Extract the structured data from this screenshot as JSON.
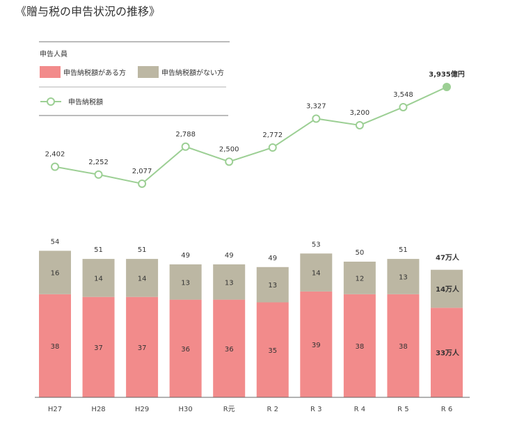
{
  "chart_data": {
    "type": "bar+line",
    "title": "《贈与税の申告状況の推移》",
    "legend": {
      "group_title": "申告人員",
      "bar_with_tax": "申告納税額がある方",
      "bar_without_tax": "申告納税額がない方",
      "line": "申告納税額"
    },
    "categories": [
      "H27",
      "H28",
      "H29",
      "H30",
      "R元",
      "R 2",
      "R 3",
      "R 4",
      "R 5",
      "R 6"
    ],
    "series": [
      {
        "name": "申告納税額がある方",
        "type": "stacked-bar",
        "unit": "万人",
        "values": [
          38,
          37,
          37,
          36,
          36,
          35,
          39,
          38,
          38,
          33
        ],
        "color": "#f28b8b"
      },
      {
        "name": "申告納税額がない方",
        "type": "stacked-bar",
        "unit": "万人",
        "values": [
          16,
          14,
          14,
          13,
          13,
          13,
          14,
          12,
          13,
          14
        ],
        "color": "#bcb7a3"
      },
      {
        "name": "申告納税額",
        "type": "line",
        "unit": "億円",
        "values": [
          2402,
          2252,
          2077,
          2788,
          2500,
          2772,
          3327,
          3200,
          3548,
          3935
        ],
        "color": "#9ccf94"
      }
    ],
    "totals": [
      54,
      51,
      51,
      49,
      49,
      49,
      53,
      50,
      51,
      47
    ],
    "bar_labels": {
      "with_tax": [
        "38",
        "37",
        "37",
        "36",
        "36",
        "35",
        "39",
        "38",
        "38",
        "33万人"
      ],
      "without_tax": [
        "16",
        "14",
        "14",
        "13",
        "13",
        "13",
        "14",
        "12",
        "13",
        "14万人"
      ],
      "totals": [
        "54",
        "51",
        "51",
        "49",
        "49",
        "49",
        "53",
        "50",
        "51",
        "47万人"
      ]
    },
    "line_labels": [
      "2,402",
      "2,252",
      "2,077",
      "2,788",
      "2,500",
      "2,772",
      "3,327",
      "3,200",
      "3,548",
      "3,935億円"
    ],
    "grid": false
  }
}
